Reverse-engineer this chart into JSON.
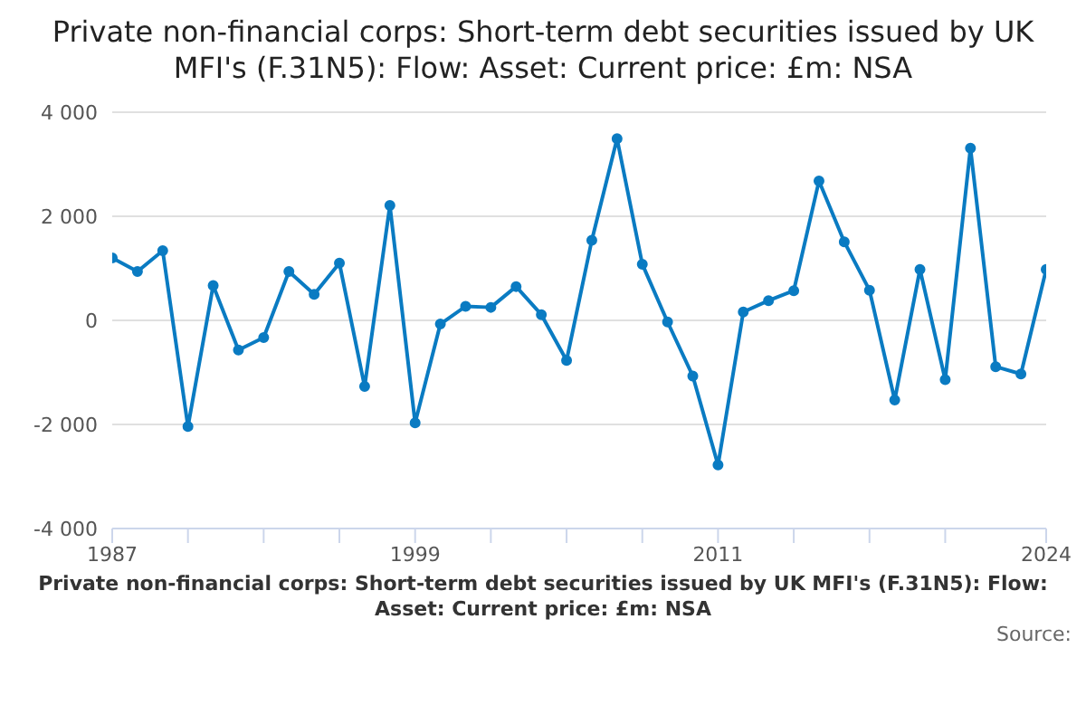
{
  "chart_data": {
    "type": "line",
    "title": "Private non-financial corps: Short-term debt securities issued by UK MFI's (F.31N5): Flow: Asset: Current price: £m: NSA",
    "annotations": [
      "Private non-financial corps: Short-term debt securities issued by UK MFI's (F.31N5): Flow: Asset: Current price: £m: NSA",
      "Source:"
    ],
    "x": [
      1987,
      1988,
      1989,
      1990,
      1991,
      1992,
      1993,
      1994,
      1995,
      1996,
      1997,
      1998,
      1999,
      2000,
      2001,
      2002,
      2003,
      2004,
      2005,
      2006,
      2007,
      2008,
      2009,
      2010,
      2011,
      2012,
      2013,
      2014,
      2015,
      2016,
      2017,
      2018,
      2019,
      2020,
      2021,
      2022,
      2023,
      2024
    ],
    "series": [
      {
        "color": "#0a7bc2",
        "values": [
          1200,
          940,
          1340,
          -2040,
          670,
          -570,
          -330,
          940,
          500,
          1100,
          -1270,
          2210,
          -1970,
          -70,
          270,
          250,
          650,
          110,
          -770,
          1540,
          3490,
          1080,
          -30,
          -1070,
          -2780,
          160,
          380,
          570,
          2680,
          1510,
          580,
          -1530,
          980,
          -1140,
          3310,
          -890,
          -1030,
          980
        ]
      }
    ],
    "xlim": [
      1987,
      2024
    ],
    "xticks": [
      1987,
      {
        "value": 1990,
        "label": null
      },
      {
        "value": 1993,
        "label": null
      },
      {
        "value": 1996,
        "label": null
      },
      1999,
      {
        "value": 2002,
        "label": null
      },
      {
        "value": 2005,
        "label": null
      },
      {
        "value": 2008,
        "label": null
      },
      2011,
      {
        "value": 2014,
        "label": null
      },
      {
        "value": 2017,
        "label": null
      },
      {
        "value": 2020,
        "label": null
      },
      2024
    ],
    "ylim": [
      -4000,
      4000
    ],
    "yticks": [
      {
        "value": -4000,
        "label": "-4 000"
      },
      {
        "value": -2000,
        "label": "-2 000"
      },
      0,
      {
        "value": 2000,
        "label": "2 000"
      },
      {
        "value": 4000,
        "label": "4 000"
      }
    ],
    "grid": "y",
    "legend": false,
    "marker": "circle",
    "line_style": "solid"
  }
}
